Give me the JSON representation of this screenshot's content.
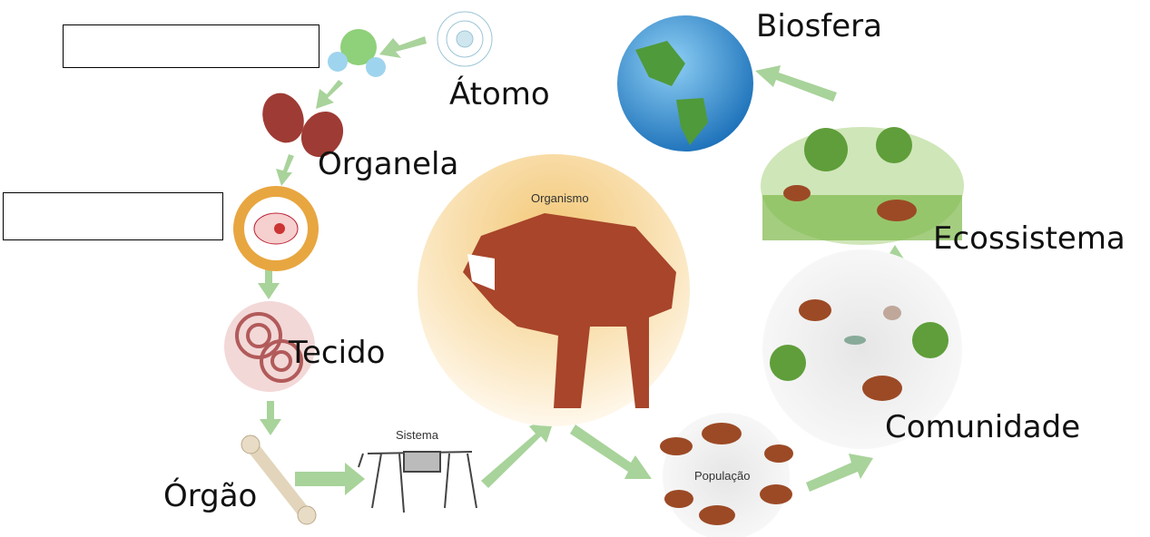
{
  "levels": {
    "atom": "Átomo",
    "organelle": "Organela",
    "tissue": "Tecido",
    "organ": "Órgão",
    "system": "Sistema",
    "organism": "Organismo",
    "population": "População",
    "community": "Comunidade",
    "ecosystem": "Ecossistema",
    "biosphere": "Biosfera"
  }
}
